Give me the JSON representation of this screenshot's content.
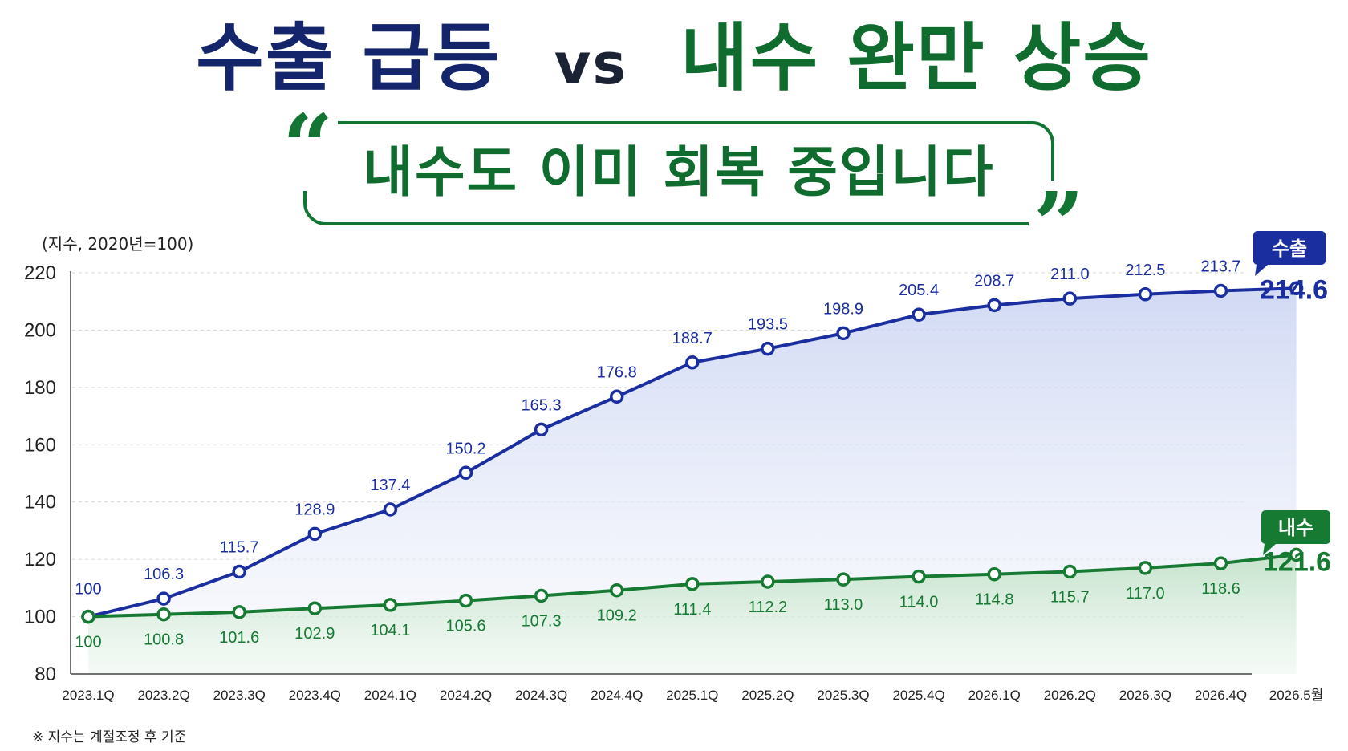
{
  "title": {
    "part1": "수출 급등",
    "vs": "vs",
    "part2": "내수 완만 상승"
  },
  "quote": {
    "text": "내수도 이미 회복 중입니다",
    "open_mark": "“",
    "close_mark": "”"
  },
  "unit_label": "(지수, 2020년=100)",
  "footnote": "※ 지수는 계절조정 후 기준",
  "chart_data": {
    "type": "line",
    "ylim": [
      80,
      220
    ],
    "yticks": [
      80,
      100,
      120,
      140,
      160,
      180,
      200,
      220
    ],
    "ytick_labels": [
      "80",
      "100",
      "120",
      "140",
      "160",
      "180",
      "200",
      "220"
    ],
    "grid": true,
    "categories": [
      "2023.1Q",
      "2023.2Q",
      "2023.3Q",
      "2023.4Q",
      "2024.1Q",
      "2024.2Q",
      "2024.3Q",
      "2024.4Q",
      "2025.1Q",
      "2025.2Q",
      "2025.3Q",
      "2025.4Q",
      "2026.1Q",
      "2026.2Q",
      "2026.3Q",
      "2026.4Q",
      "2026.5월"
    ],
    "series": [
      {
        "name": "수출",
        "color": "#1a2ea0",
        "values": [
          100,
          106.3,
          115.7,
          128.9,
          137.4,
          150.2,
          165.3,
          176.8,
          188.7,
          193.5,
          198.9,
          205.4,
          208.7,
          211.0,
          212.5,
          213.7,
          214.6
        ],
        "labels": [
          "100",
          "106.3",
          "115.7",
          "128.9",
          "137.4",
          "150.2",
          "165.3",
          "176.8",
          "188.7",
          "193.5",
          "198.9",
          "205.4",
          "208.7",
          "211.0",
          "212.5",
          "213.7",
          "214.6"
        ]
      },
      {
        "name": "내수",
        "color": "#167a33",
        "values": [
          100,
          100.8,
          101.6,
          102.9,
          104.1,
          105.6,
          107.3,
          109.2,
          111.4,
          112.2,
          113.0,
          114.0,
          114.8,
          115.7,
          117.0,
          118.6,
          121.6
        ],
        "labels": [
          "100",
          "100.8",
          "101.6",
          "102.9",
          "104.1",
          "105.6",
          "107.3",
          "109.2",
          "111.4",
          "112.2",
          "113.0",
          "114.0",
          "114.8",
          "115.7",
          "117.0",
          "118.6",
          "121.6"
        ]
      }
    ]
  },
  "colors": {
    "export": "#1a2ea0",
    "domestic": "#167a33",
    "title_navy": "#14256b",
    "title_green": "#0f6b2e"
  }
}
